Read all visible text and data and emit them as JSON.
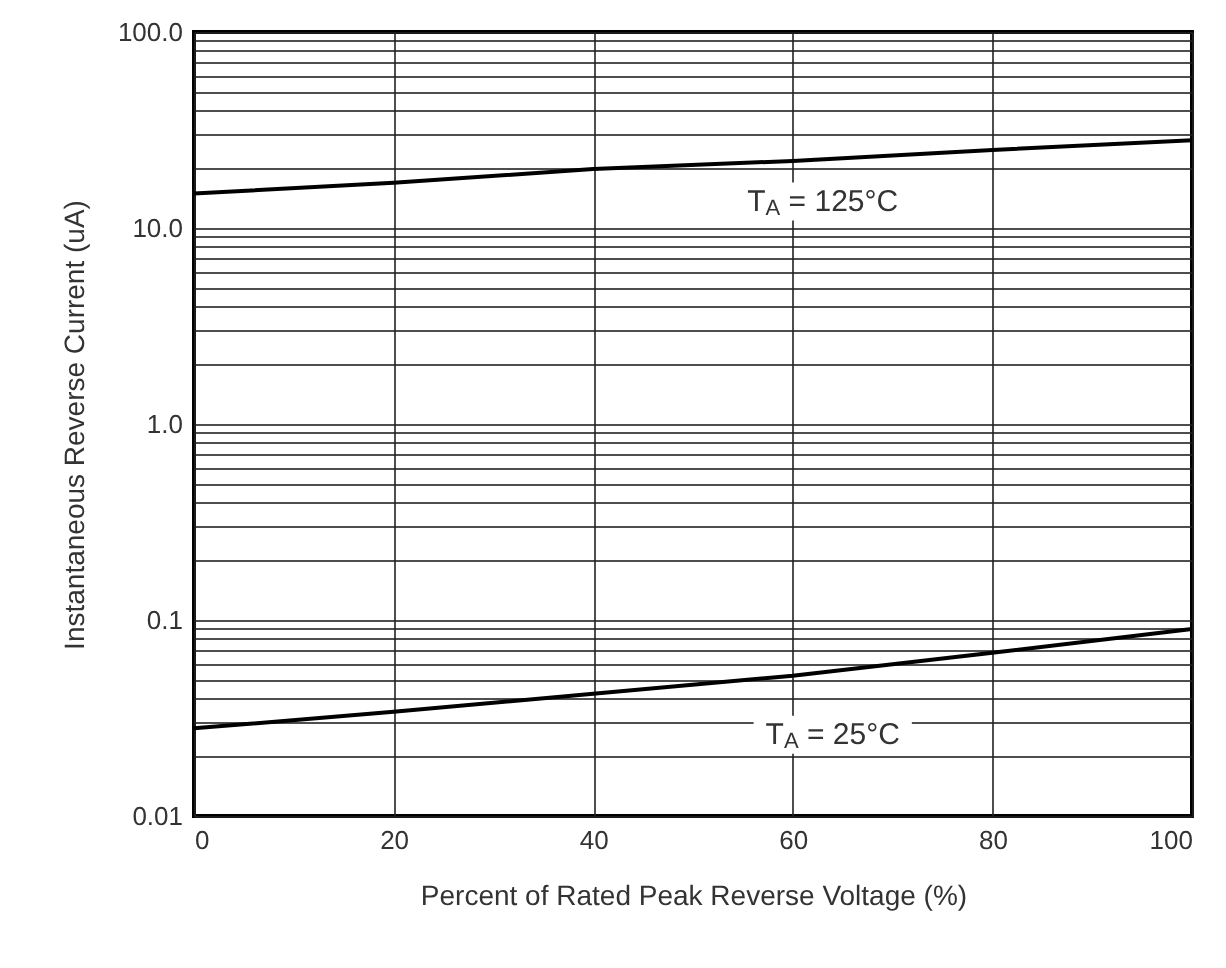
{
  "chart_data": {
    "type": "line",
    "xlabel": "Percent of Rated Peak Reverse Voltage (%)",
    "ylabel": "Instantaneous Reverse Current (uA)",
    "x": [
      0,
      20,
      40,
      60,
      80,
      100
    ],
    "series": [
      {
        "color": "#000000",
        "values": [
          15,
          17,
          20,
          22,
          25,
          28
        ]
      },
      {
        "color": "#000000",
        "values": [
          0.028,
          0.034,
          0.042,
          0.052,
          0.068,
          0.09
        ]
      }
    ],
    "log": "y",
    "xlim": [
      0,
      100
    ],
    "xticks": [
      0,
      20,
      40,
      60,
      80,
      100
    ],
    "ylim": [
      0.01,
      100
    ],
    "yticks": [
      {
        "value": 0.01,
        "label": "0.01"
      },
      {
        "value": 0.02,
        "label": null
      },
      {
        "value": 0.03,
        "label": null
      },
      {
        "value": 0.04,
        "label": null
      },
      {
        "value": 0.05,
        "label": null
      },
      {
        "value": 0.06,
        "label": null
      },
      {
        "value": 0.07,
        "label": null
      },
      {
        "value": 0.08,
        "label": null
      },
      {
        "value": 0.09,
        "label": null
      },
      {
        "value": 0.1,
        "label": "0.1"
      },
      {
        "value": 0.2,
        "label": null
      },
      {
        "value": 0.3,
        "label": null
      },
      {
        "value": 0.4,
        "label": null
      },
      {
        "value": 0.5,
        "label": null
      },
      {
        "value": 0.6,
        "label": null
      },
      {
        "value": 0.7,
        "label": null
      },
      {
        "value": 0.8,
        "label": null
      },
      {
        "value": 0.9,
        "label": null
      },
      {
        "value": 1,
        "label": "1.0"
      },
      {
        "value": 2,
        "label": null
      },
      {
        "value": 3,
        "label": null
      },
      {
        "value": 4,
        "label": null
      },
      {
        "value": 5,
        "label": null
      },
      {
        "value": 6,
        "label": null
      },
      {
        "value": 7,
        "label": null
      },
      {
        "value": 8,
        "label": null
      },
      {
        "value": 9,
        "label": null
      },
      {
        "value": 10,
        "label": "10.0"
      },
      {
        "value": 20,
        "label": null
      },
      {
        "value": 30,
        "label": null
      },
      {
        "value": 40,
        "label": null
      },
      {
        "value": 50,
        "label": null
      },
      {
        "value": 60,
        "label": null
      },
      {
        "value": 70,
        "label": null
      },
      {
        "value": 80,
        "label": null
      },
      {
        "value": 90,
        "label": null
      },
      {
        "value": 100,
        "label": "100.0"
      }
    ],
    "grid": true,
    "line_style": "solid",
    "marker": "none",
    "annotations": [
      "T$_{A}$ = 125°C",
      "T$_{A}$ = 25°C"
    ]
  }
}
